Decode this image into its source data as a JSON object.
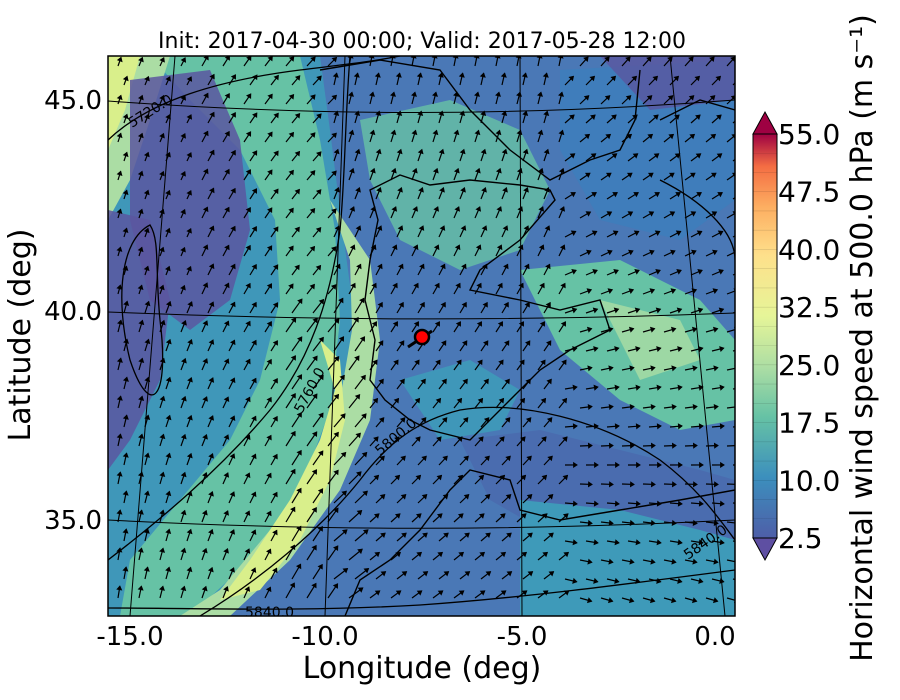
{
  "title": "Init: 2017-04-30 00:00; Valid: 2017-05-28 12:00",
  "axes": {
    "xlabel": "Longitude (deg)",
    "ylabel": "Latitude (deg)",
    "x_ticks": [
      "-15.0",
      "-10.0",
      "-5.0",
      "0.0"
    ],
    "y_ticks": [
      "45.0",
      "40.0",
      "35.0"
    ]
  },
  "colorbar": {
    "label": "Horizontal wind speed at 500.0 hPa (m s⁻¹)",
    "ticks": [
      "55.0",
      "47.5",
      "40.0",
      "32.5",
      "25.0",
      "17.5",
      "10.0",
      "2.5"
    ],
    "range": [
      2.5,
      55.0
    ],
    "step": 2.5
  },
  "contour_labels": [
    "5720.0",
    "5760.0",
    "5800.0",
    "5840.0",
    "5840.0"
  ],
  "marker": {
    "name": "point of interest",
    "color": "#ff0000"
  },
  "colors": {
    "low": "#4e5ea8",
    "mid_low": "#3c8fbd",
    "mid": "#66c2a5",
    "mid_high": "#abdda4",
    "high": "#e6f598",
    "higher": "#fdae61",
    "max": "#9e0142"
  }
}
